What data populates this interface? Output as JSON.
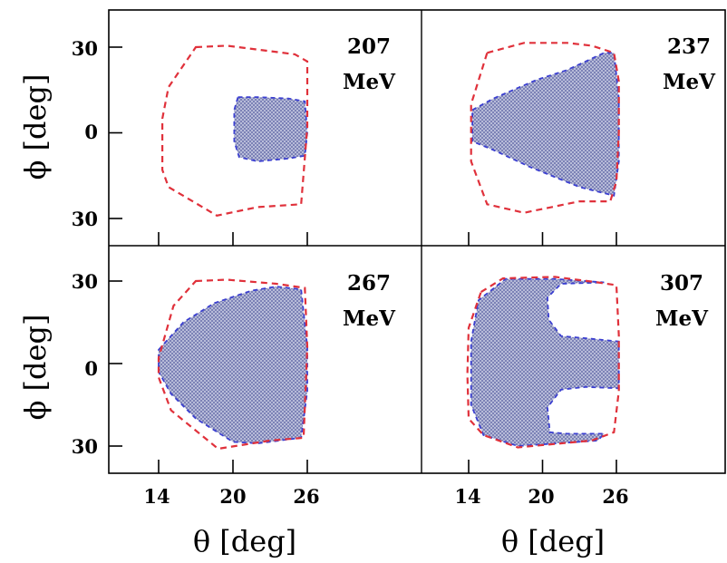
{
  "chart_data": {
    "type": "area",
    "layout": "2x2 panels",
    "xlabel": "θ [deg]",
    "ylabel": "ϕ [deg]",
    "x_ticks": [
      "14",
      "20",
      "26"
    ],
    "x_tick_values": [
      14,
      20,
      26
    ],
    "y_ticks": [
      "30",
      "0",
      "30"
    ],
    "y_tick_values": [
      30,
      0,
      -30
    ],
    "xlim": [
      10,
      39
    ],
    "ylim": [
      -40,
      42
    ],
    "colors": {
      "outer_boundary": "#e0313b",
      "inner_boundary": "#3b3fd0",
      "shaded_fill": "#9aa0cc"
    },
    "panels": [
      {
        "energy": "207",
        "unit": "MeV",
        "outer": [
          [
            17,
            30
          ],
          [
            19.5,
            30.5
          ],
          [
            25,
            27.5
          ],
          [
            26,
            25
          ],
          [
            26,
            2
          ],
          [
            25.5,
            -25
          ],
          [
            22,
            -26
          ],
          [
            18.7,
            -29
          ],
          [
            14.8,
            -19
          ],
          [
            14.3,
            -13
          ],
          [
            14.3,
            5
          ],
          [
            14.8,
            16
          ]
        ],
        "inner": [
          [
            20.4,
            12.5
          ],
          [
            22,
            12.5
          ],
          [
            24.5,
            12
          ],
          [
            25.8,
            11
          ],
          [
            26,
            0
          ],
          [
            25.8,
            -8
          ],
          [
            24.5,
            -9
          ],
          [
            22,
            -10
          ],
          [
            20.5,
            -8.5
          ],
          [
            20.1,
            -3
          ],
          [
            20.1,
            8
          ]
        ]
      },
      {
        "energy": "237",
        "unit": "MeV",
        "outer": [
          [
            15.5,
            28
          ],
          [
            18.5,
            31.5
          ],
          [
            22,
            31.5
          ],
          [
            24,
            30.5
          ],
          [
            25.8,
            28
          ],
          [
            26.2,
            18
          ],
          [
            26.2,
            0
          ],
          [
            26,
            -17
          ],
          [
            25.5,
            -24
          ],
          [
            23,
            -24
          ],
          [
            18.5,
            -28
          ],
          [
            15.5,
            -25
          ],
          [
            14.2,
            -10
          ],
          [
            14.2,
            10
          ]
        ],
        "inner": [
          [
            14.3,
            8
          ],
          [
            16,
            12
          ],
          [
            19.5,
            18.5
          ],
          [
            22,
            22
          ],
          [
            25,
            28
          ],
          [
            25.8,
            28
          ],
          [
            26.2,
            12
          ],
          [
            26.2,
            -10
          ],
          [
            25.8,
            -22
          ],
          [
            23,
            -19
          ],
          [
            19,
            -12
          ],
          [
            16,
            -6
          ],
          [
            14.3,
            -3
          ]
        ]
      },
      {
        "energy": "267",
        "unit": "MeV",
        "outer": [
          [
            17,
            30
          ],
          [
            19.5,
            30.5
          ],
          [
            23.5,
            29
          ],
          [
            25.8,
            27.5
          ],
          [
            26,
            6
          ],
          [
            25.7,
            -27
          ],
          [
            23,
            -28
          ],
          [
            18.8,
            -31
          ],
          [
            15,
            -17
          ],
          [
            14,
            -5
          ],
          [
            14,
            2
          ],
          [
            15.2,
            21
          ]
        ],
        "inner": [
          [
            14,
            5
          ],
          [
            16,
            15
          ],
          [
            18.5,
            22
          ],
          [
            21.5,
            26.5
          ],
          [
            23.5,
            28
          ],
          [
            25.5,
            27
          ],
          [
            26,
            6
          ],
          [
            26,
            -10
          ],
          [
            25.5,
            -27
          ],
          [
            22,
            -29
          ],
          [
            20,
            -28.5
          ],
          [
            17,
            -20
          ],
          [
            15,
            -11
          ],
          [
            14,
            -3
          ]
        ]
      },
      {
        "energy": "307",
        "unit": "MeV",
        "outer": [
          [
            15,
            26
          ],
          [
            16.8,
            31
          ],
          [
            21,
            31.5
          ],
          [
            24.5,
            29.5
          ],
          [
            26,
            28.5
          ],
          [
            26.2,
            10
          ],
          [
            26.2,
            -10
          ],
          [
            25.8,
            -25
          ],
          [
            24,
            -28
          ],
          [
            18,
            -30.5
          ],
          [
            15.2,
            -26
          ],
          [
            14,
            -20
          ],
          [
            13.9,
            -4
          ],
          [
            14,
            13
          ]
        ],
        "inner": [
          [
            14.2,
            8
          ],
          [
            14.8,
            23
          ],
          [
            17,
            30.8
          ],
          [
            21,
            30.8
          ],
          [
            25,
            29.5
          ],
          [
            21.5,
            29
          ],
          [
            20.4,
            24
          ],
          [
            20.5,
            16
          ],
          [
            21.5,
            10
          ],
          [
            24,
            9
          ],
          [
            26.2,
            8
          ],
          [
            26.2,
            0
          ],
          [
            26.2,
            -9
          ],
          [
            23.5,
            -8.5
          ],
          [
            21.5,
            -9.5
          ],
          [
            20.4,
            -16
          ],
          [
            20.6,
            -25
          ],
          [
            22,
            -25.5
          ],
          [
            25,
            -25.5
          ],
          [
            24.5,
            -28
          ],
          [
            18,
            -30
          ],
          [
            15.2,
            -26
          ],
          [
            14.2,
            -15
          ],
          [
            14.2,
            -5
          ]
        ]
      }
    ]
  }
}
